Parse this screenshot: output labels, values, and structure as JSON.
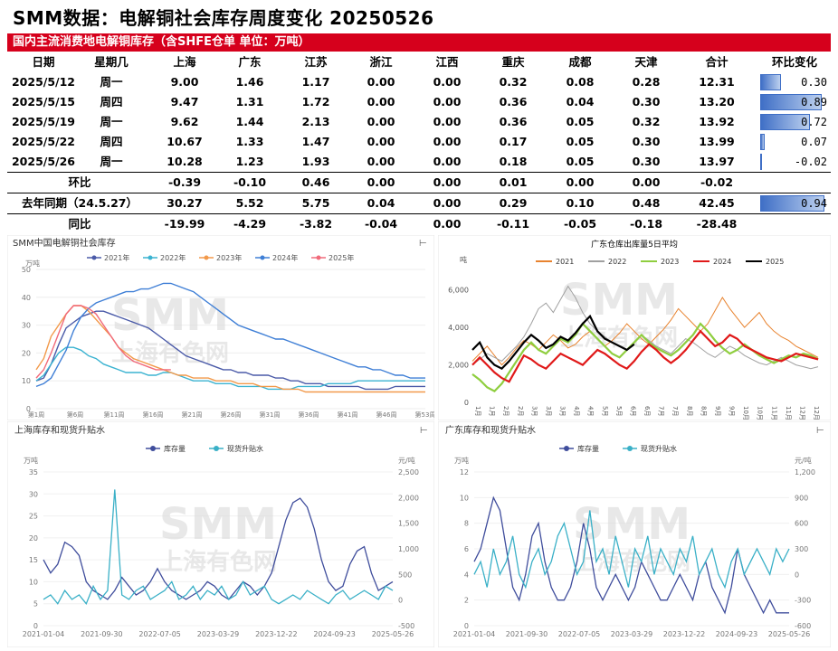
{
  "header": {
    "title": "SMM数据：电解铜社会库存周度变化 20250526",
    "banner": "国内主流消费地电解铜库存（含SHFE仓单 单位：万吨）"
  },
  "table": {
    "columns": [
      "日期",
      "星期几",
      "上海",
      "广东",
      "江苏",
      "浙江",
      "江西",
      "重庆",
      "成都",
      "天津",
      "合计",
      "环比变化"
    ],
    "rows": [
      {
        "cells": [
          "2025/5/12",
          "周一",
          "9.00",
          "1.46",
          "1.17",
          "0.00",
          "0.00",
          "0.32",
          "0.08",
          "0.28",
          "12.31"
        ],
        "change": "0.30",
        "change_value": 0.3
      },
      {
        "cells": [
          "2025/5/15",
          "周四",
          "9.47",
          "1.31",
          "1.72",
          "0.00",
          "0.00",
          "0.36",
          "0.04",
          "0.30",
          "13.20"
        ],
        "change": "0.89",
        "change_value": 0.89
      },
      {
        "cells": [
          "2025/5/19",
          "周一",
          "9.62",
          "1.44",
          "2.13",
          "0.00",
          "0.00",
          "0.36",
          "0.05",
          "0.32",
          "13.92"
        ],
        "change": "0.72",
        "change_value": 0.72
      },
      {
        "cells": [
          "2025/5/22",
          "周四",
          "10.67",
          "1.33",
          "1.47",
          "0.00",
          "0.00",
          "0.17",
          "0.05",
          "0.30",
          "13.99"
        ],
        "change": "0.07",
        "change_value": 0.07
      },
      {
        "cells": [
          "2025/5/26",
          "周一",
          "10.28",
          "1.23",
          "1.93",
          "0.00",
          "0.00",
          "0.18",
          "0.05",
          "0.30",
          "13.97"
        ],
        "change": "-0.02",
        "change_value": -0.02
      }
    ],
    "hb": {
      "label": "环比",
      "cells": [
        "-0.39",
        "-0.10",
        "0.46",
        "0.00",
        "0.00",
        "0.01",
        "0.00",
        "0.00",
        "-0.02"
      ]
    },
    "ly": {
      "label": "去年同期（24.5.27）",
      "cells": [
        "30.27",
        "5.52",
        "5.75",
        "0.04",
        "0.00",
        "0.29",
        "0.10",
        "0.48",
        "42.45"
      ],
      "change": "0.94",
      "change_value": 0.94
    },
    "tb": {
      "label": "同比",
      "cells": [
        "-19.99",
        "-4.29",
        "-3.82",
        "-0.04",
        "0.00",
        "-0.11",
        "-0.05",
        "-0.18",
        "-28.48"
      ]
    }
  },
  "watermark": {
    "line1": "SMM",
    "line2": "上海有色网"
  },
  "chart_data": [
    {
      "type": "line",
      "title": "SMM中国电解铜社会库存",
      "ylabel": "万吨",
      "ylim": [
        0,
        50
      ],
      "yticks": [
        "0",
        "10",
        "20",
        "30",
        "40",
        "50"
      ],
      "xticks": [
        "第1周",
        "第6周",
        "第11周",
        "第16周",
        "第21周",
        "第26周",
        "第31周",
        "第36周",
        "第41周",
        "第46周",
        "第53周"
      ],
      "x_max": 53,
      "series": [
        {
          "name": "2021年",
          "color": "#4a5aa8",
          "values": [
            10,
            11,
            16,
            23,
            29,
            31,
            33,
            34,
            35,
            35,
            34,
            33,
            32,
            31,
            30,
            29,
            27,
            25,
            23,
            21,
            19,
            18,
            17,
            16,
            15,
            14,
            14,
            13,
            13,
            12,
            12,
            12,
            11,
            11,
            10,
            10,
            9,
            9,
            9,
            8,
            8,
            8,
            8,
            8,
            7,
            7,
            7,
            7,
            8,
            8,
            8,
            8,
            8
          ]
        },
        {
          "name": "2022年",
          "color": "#3bb3d1",
          "values": [
            10,
            12,
            16,
            20,
            22,
            22,
            21,
            19,
            18,
            16,
            15,
            14,
            13,
            13,
            13,
            12,
            12,
            13,
            13,
            12,
            11,
            10,
            10,
            10,
            9,
            9,
            9,
            8,
            8,
            8,
            8,
            7,
            7,
            7,
            7,
            8,
            8,
            8,
            8,
            9,
            9,
            9,
            9,
            10,
            10,
            10,
            10,
            10,
            10,
            10,
            10,
            10,
            10
          ]
        },
        {
          "name": "2023年",
          "color": "#f2994a",
          "values": [
            14,
            18,
            26,
            30,
            34,
            37,
            37,
            35,
            32,
            29,
            26,
            22,
            20,
            18,
            17,
            16,
            15,
            14,
            13,
            12,
            12,
            11,
            11,
            11,
            10,
            10,
            10,
            9,
            9,
            9,
            8,
            8,
            8,
            7,
            7,
            7,
            6,
            6,
            6,
            6,
            6,
            6,
            6,
            6,
            6,
            6,
            6,
            6,
            6,
            6,
            6,
            6,
            6
          ]
        },
        {
          "name": "2024年",
          "color": "#3f7fd6",
          "values": [
            8,
            9,
            11,
            16,
            21,
            28,
            33,
            36,
            38,
            39,
            40,
            41,
            42,
            42,
            43,
            43,
            44,
            45,
            45,
            44,
            43,
            42,
            40,
            38,
            36,
            34,
            32,
            30,
            29,
            28,
            27,
            26,
            25,
            25,
            24,
            23,
            22,
            21,
            20,
            19,
            18,
            17,
            16,
            15,
            15,
            14,
            14,
            13,
            12,
            12,
            11,
            11,
            11
          ]
        },
        {
          "name": "2025年",
          "color": "#f16a7a",
          "values": [
            11,
            14,
            20,
            27,
            34,
            37,
            37,
            36,
            34,
            30,
            26,
            22,
            19,
            17,
            16,
            15,
            14,
            14,
            14
          ]
        }
      ]
    },
    {
      "type": "line",
      "title": "广东仓库出库量5日平均",
      "ylabel": "吨",
      "ylim": [
        0,
        7000
      ],
      "yticks": [
        "0",
        "2,000",
        "4,000",
        "6,000"
      ],
      "xticks": [
        "1月",
        "1月",
        "2月",
        "2月",
        "3月",
        "3月",
        "3月",
        "4月",
        "4月",
        "5月",
        "5月",
        "6月",
        "6月",
        "7月",
        "7月",
        "8月",
        "8月",
        "9月",
        "9月",
        "10月",
        "10月",
        "11月",
        "11月",
        "12月",
        "12月"
      ],
      "series": [
        {
          "name": "2021",
          "color": "#e8832f",
          "values": [
            2200,
            2600,
            3000,
            2500,
            2000,
            2400,
            2900,
            3300,
            3100,
            2800,
            3200,
            3600,
            3300,
            2900,
            3100,
            3500,
            3800,
            3400,
            3000,
            3300,
            3700,
            4200,
            3800,
            3400,
            3100,
            3500,
            3900,
            4400,
            5000,
            4600,
            4200,
            3800,
            4200,
            4900,
            5600,
            5000,
            4500,
            4000,
            4400,
            4800,
            4200,
            3800,
            3500,
            3300,
            3000,
            2800,
            2600,
            2400
          ]
        },
        {
          "name": "2022",
          "color": "#a0a0a0",
          "values": [
            2000,
            2300,
            2600,
            2400,
            2200,
            2600,
            3000,
            3500,
            4200,
            5000,
            5300,
            4800,
            5500,
            6200,
            5600,
            4800,
            4200,
            3800,
            3500,
            3200,
            3000,
            2800,
            3200,
            3600,
            3300,
            3000,
            2800,
            2600,
            3000,
            3400,
            3200,
            2900,
            2600,
            2400,
            2700,
            3000,
            2800,
            2500,
            2300,
            2100,
            2000,
            2200,
            2400,
            2200,
            2000,
            1900,
            1800,
            1900
          ]
        },
        {
          "name": "2023",
          "color": "#8fce3f",
          "values": [
            1500,
            1200,
            800,
            600,
            1000,
            1600,
            2200,
            2800,
            3200,
            2800,
            2600,
            3000,
            3400,
            3200,
            3600,
            4200,
            3800,
            3400,
            3000,
            2600,
            2400,
            2800,
            3200,
            3600,
            3200,
            2900,
            2700,
            2500,
            2800,
            3200,
            3600,
            4200,
            3800,
            3300,
            2900,
            2600,
            2800,
            3100,
            2800,
            2500,
            2300,
            2100,
            2300,
            2500,
            2400,
            2600,
            2500,
            2300
          ]
        },
        {
          "name": "2024",
          "color": "#e01919",
          "values": [
            2000,
            2400,
            2000,
            1600,
            1300,
            1100,
            1800,
            2500,
            2300,
            2000,
            1800,
            2200,
            2600,
            2400,
            2200,
            2000,
            2400,
            2800,
            2600,
            2300,
            2000,
            1800,
            2200,
            2700,
            3100,
            2800,
            2400,
            2100,
            2400,
            2800,
            3300,
            3800,
            3400,
            3000,
            3200,
            3600,
            3400,
            3000,
            2800,
            2600,
            2400,
            2300,
            2200,
            2400,
            2600,
            2500,
            2400,
            2300
          ]
        },
        {
          "name": "2025",
          "color": "#000000",
          "values": [
            2800,
            3200,
            2400,
            2000,
            1800,
            2200,
            2700,
            3200,
            3600,
            3300,
            2900,
            3100,
            3500,
            3300,
            3700,
            4200,
            4600,
            3800,
            3400,
            3200,
            3000,
            2800,
            3100
          ]
        }
      ]
    },
    {
      "type": "line",
      "title": "上海库存和现货升贴水",
      "ylabel_left": "万吨",
      "ylabel_right": "元/吨",
      "left_ylim": [
        0,
        35
      ],
      "right_ylim": [
        -500,
        2500
      ],
      "left_yticks": [
        "0",
        "5",
        "10",
        "15",
        "20",
        "25",
        "30",
        "35"
      ],
      "right_yticks": [
        "-500",
        "0",
        "500",
        "1,000",
        "1,500",
        "2,000",
        "2,500"
      ],
      "xticks": [
        "2021-01-04",
        "2021-09-30",
        "2022-07-05",
        "2023-03-29",
        "2023-12-22",
        "2024-09-23",
        "2025-05-26"
      ],
      "series": [
        {
          "name": "库存量",
          "color": "#3f4d9c",
          "axis": "left",
          "values": [
            15,
            12,
            14,
            19,
            18,
            16,
            10,
            8,
            7,
            6,
            8,
            11,
            9,
            7,
            8,
            10,
            13,
            10,
            8,
            7,
            6,
            7,
            8,
            10,
            9,
            7,
            6,
            8,
            10,
            9,
            7,
            9,
            12,
            18,
            24,
            28,
            29,
            27,
            22,
            15,
            10,
            8,
            9,
            14,
            17,
            18,
            12,
            8,
            9,
            10
          ]
        },
        {
          "name": "现货升贴水",
          "color": "#3ab0c7",
          "axis": "left",
          "values": [
            6,
            7,
            5,
            8,
            6,
            7,
            5,
            9,
            6,
            8,
            31,
            7,
            6,
            8,
            9,
            6,
            7,
            8,
            10,
            6,
            7,
            9,
            6,
            8,
            7,
            9,
            6,
            7,
            10,
            7,
            8,
            9,
            6,
            5,
            6,
            7,
            6,
            8,
            7,
            6,
            5,
            7,
            8,
            6,
            7,
            8,
            7,
            6,
            9,
            8
          ]
        }
      ]
    },
    {
      "type": "line",
      "title": "广东库存和现货升贴水",
      "ylabel_left": "万吨",
      "ylabel_right": "元/吨",
      "left_ylim": [
        0,
        12
      ],
      "right_ylim": [
        -600,
        1200
      ],
      "left_yticks": [
        "0",
        "2",
        "4",
        "6",
        "8",
        "10",
        "12"
      ],
      "right_yticks": [
        "-600",
        "-300",
        "0",
        "300",
        "600",
        "900",
        "1,200"
      ],
      "xticks": [
        "2021-01-04",
        "2021-09-30",
        "2022-07-05",
        "2023-03-29",
        "2023-12-22",
        "2024-09-23",
        "2025-05-26"
      ],
      "series": [
        {
          "name": "库存量",
          "color": "#3f4d9c",
          "axis": "left",
          "values": [
            5,
            6,
            8,
            10,
            9,
            6,
            3,
            2,
            4,
            7,
            8,
            5,
            3,
            2,
            2,
            3,
            5,
            8,
            6,
            3,
            2,
            3,
            4,
            3,
            2,
            3,
            5,
            4,
            3,
            2,
            2,
            3,
            4,
            3,
            2,
            4,
            5,
            3,
            2,
            1,
            3,
            6,
            4,
            3,
            2,
            1,
            2,
            1,
            1,
            1
          ]
        },
        {
          "name": "现货升贴水",
          "color": "#3ab0c7",
          "axis": "left",
          "values": [
            4,
            5,
            3,
            6,
            4,
            5,
            7,
            4,
            3,
            5,
            6,
            4,
            5,
            7,
            8,
            6,
            4,
            5,
            9,
            5,
            6,
            4,
            7,
            5,
            3,
            6,
            5,
            7,
            4,
            6,
            5,
            4,
            6,
            5,
            7,
            4,
            5,
            6,
            4,
            3,
            5,
            6,
            4,
            5,
            6,
            5,
            4,
            6,
            5,
            6
          ]
        }
      ]
    }
  ]
}
